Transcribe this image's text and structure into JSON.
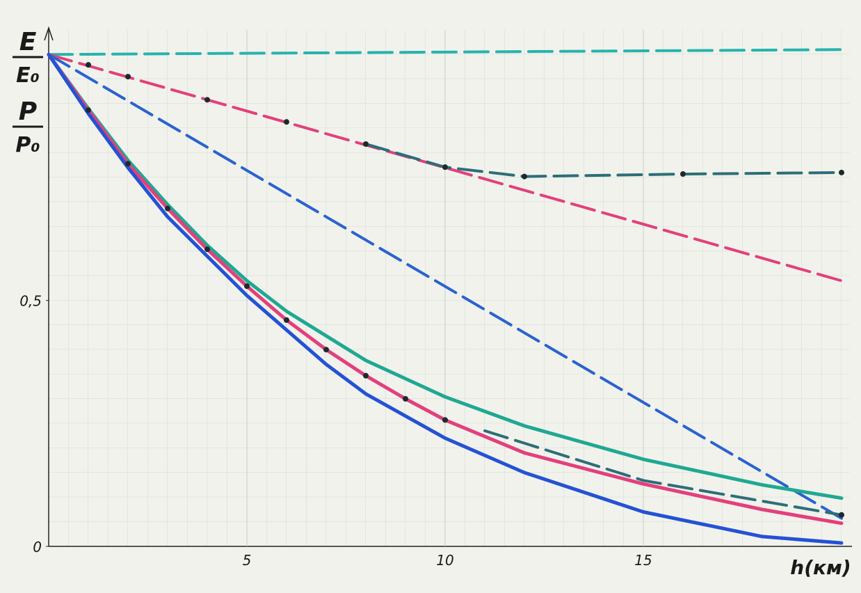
{
  "chart_data": {
    "type": "line",
    "ylabels": [
      {
        "num": "E",
        "den": "E₀"
      },
      {
        "num": "P",
        "den": "P₀"
      }
    ],
    "xlabel": "h(км)",
    "xlim": [
      0,
      20.2
    ],
    "ylim": [
      0,
      1.05
    ],
    "xticks": [
      5,
      10,
      15
    ],
    "yticks": [
      0,
      {
        "value": 0.5,
        "label": "0,5"
      }
    ],
    "series": [
      {
        "color": "#27b3ad",
        "style": "dashed",
        "x": [
          0,
          20
        ],
        "values": [
          1.0,
          1.01
        ]
      },
      {
        "color": "#e2407c",
        "style": "dashed",
        "x": [
          0,
          5,
          10,
          15,
          20
        ],
        "values": [
          1.0,
          0.885,
          0.77,
          0.655,
          0.54
        ]
      },
      {
        "color": "#2d6e78",
        "style": "dashed",
        "x": [
          8,
          10,
          12,
          16,
          20
        ],
        "values": [
          0.818,
          0.771,
          0.752,
          0.757,
          0.76
        ]
      },
      {
        "color": "#2a62d0",
        "style": "dashed",
        "x": [
          0,
          20
        ],
        "values": [
          1.0,
          0.057
        ]
      },
      {
        "color": "#1fa892",
        "style": "solid",
        "x": [
          0,
          1,
          2,
          3,
          4,
          5,
          6,
          8,
          10,
          12,
          15,
          18,
          20
        ],
        "values": [
          1.0,
          0.89,
          0.785,
          0.695,
          0.612,
          0.54,
          0.478,
          0.378,
          0.304,
          0.245,
          0.177,
          0.125,
          0.098
        ]
      },
      {
        "color": "#e2407c",
        "style": "solid",
        "x": [
          0,
          1,
          2,
          3,
          4,
          5,
          6,
          7,
          8,
          9,
          10,
          12,
          15,
          18,
          20
        ],
        "values": [
          1.0,
          0.887,
          0.778,
          0.687,
          0.604,
          0.529,
          0.46,
          0.4,
          0.347,
          0.3,
          0.257,
          0.19,
          0.127,
          0.075,
          0.047
        ]
      },
      {
        "color": "#2d6e78",
        "style": "dashed",
        "x": [
          11,
          15,
          20
        ],
        "values": [
          0.235,
          0.134,
          0.064
        ]
      },
      {
        "color": "#2452d4",
        "style": "solid",
        "x": [
          0,
          1,
          2,
          3,
          4,
          5,
          6,
          7,
          8,
          10,
          12,
          15,
          18,
          20
        ],
        "values": [
          1.0,
          0.88,
          0.77,
          0.67,
          0.59,
          0.51,
          0.44,
          0.37,
          0.31,
          0.22,
          0.15,
          0.07,
          0.02,
          0.007
        ]
      },
      {
        "color": "#1d2a2c",
        "style": "dots",
        "x": [
          1,
          2,
          4,
          6,
          8,
          10,
          12,
          16,
          20
        ],
        "values": [
          0.979,
          0.955,
          0.908,
          0.863,
          0.818,
          0.771,
          0.752,
          0.757,
          0.76
        ]
      },
      {
        "color": "#1d2a2c",
        "style": "dots",
        "x": [
          1,
          2,
          3,
          4,
          5,
          6,
          7,
          8,
          9,
          10,
          20
        ],
        "values": [
          0.887,
          0.778,
          0.687,
          0.604,
          0.529,
          0.46,
          0.4,
          0.347,
          0.3,
          0.257,
          0.064
        ]
      }
    ]
  }
}
